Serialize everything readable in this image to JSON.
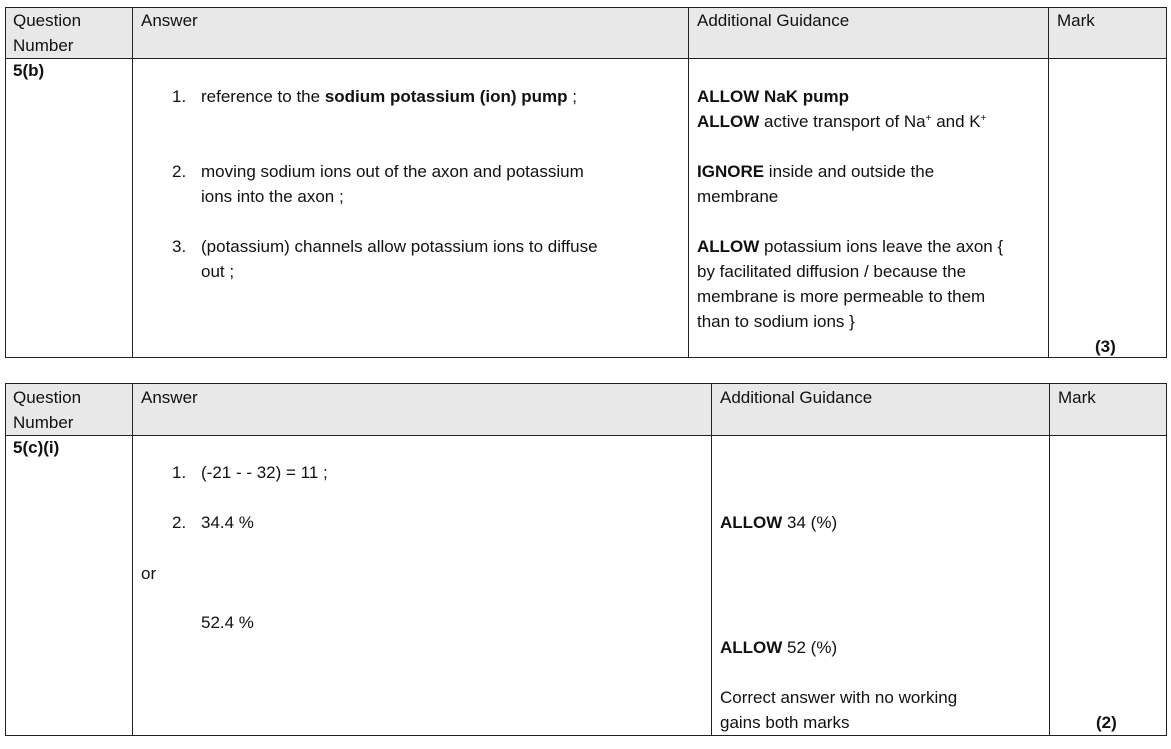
{
  "headers": {
    "question_number": "Question Number",
    "question_l1": "Question",
    "question_l2": "Number",
    "answer": "Answer",
    "guidance": "Additional Guidance",
    "mark": "Mark"
  },
  "q5b": {
    "number": "5(b)",
    "items": [
      {
        "n": "1.",
        "pre": "reference to the ",
        "bold": "sodium potassium (ion) pump",
        "post": " ;"
      },
      {
        "n": "2.",
        "l1": "moving sodium ions out of the axon and potassium",
        "l2": "ions into the axon ;"
      },
      {
        "n": "3.",
        "l1": "(potassium) channels allow potassium ions to diffuse",
        "l2": "out ;"
      }
    ],
    "guidance": {
      "g1_bold": "ALLOW NaK pump",
      "g2_bold": "ALLOW",
      "g2_text": " active transport of Na",
      "g2_sup1": "+",
      "g2_and": " and  K",
      "g2_sup2": "+",
      "g3_bold": "IGNORE",
      "g3_text": " inside and outside the",
      "g3_l2": "membrane",
      "g4_bold": "ALLOW",
      "g4_text": " potassium ions leave the axon {",
      "g4_l2": "by facilitated diffusion / because the",
      "g4_l3": "membrane is more permeable to them",
      "g4_l4": "than to sodium ions }"
    },
    "mark": "(3)"
  },
  "q5ci": {
    "number": "5(c)(i)",
    "items": [
      {
        "n": "1.",
        "text": "(-21 - - 32) =  11 ;"
      },
      {
        "n": "2.",
        "text": "34.4 %"
      }
    ],
    "or": "or",
    "alt": "52.4 %",
    "guidance": {
      "g1_bold": "ALLOW",
      "g1_text": " 34 (%)",
      "g2_bold": "ALLOW",
      "g2_text": " 52 (%)",
      "g3_l1": "Correct answer with no working",
      "g3_l2": "gains both marks"
    },
    "mark": "(2)"
  }
}
